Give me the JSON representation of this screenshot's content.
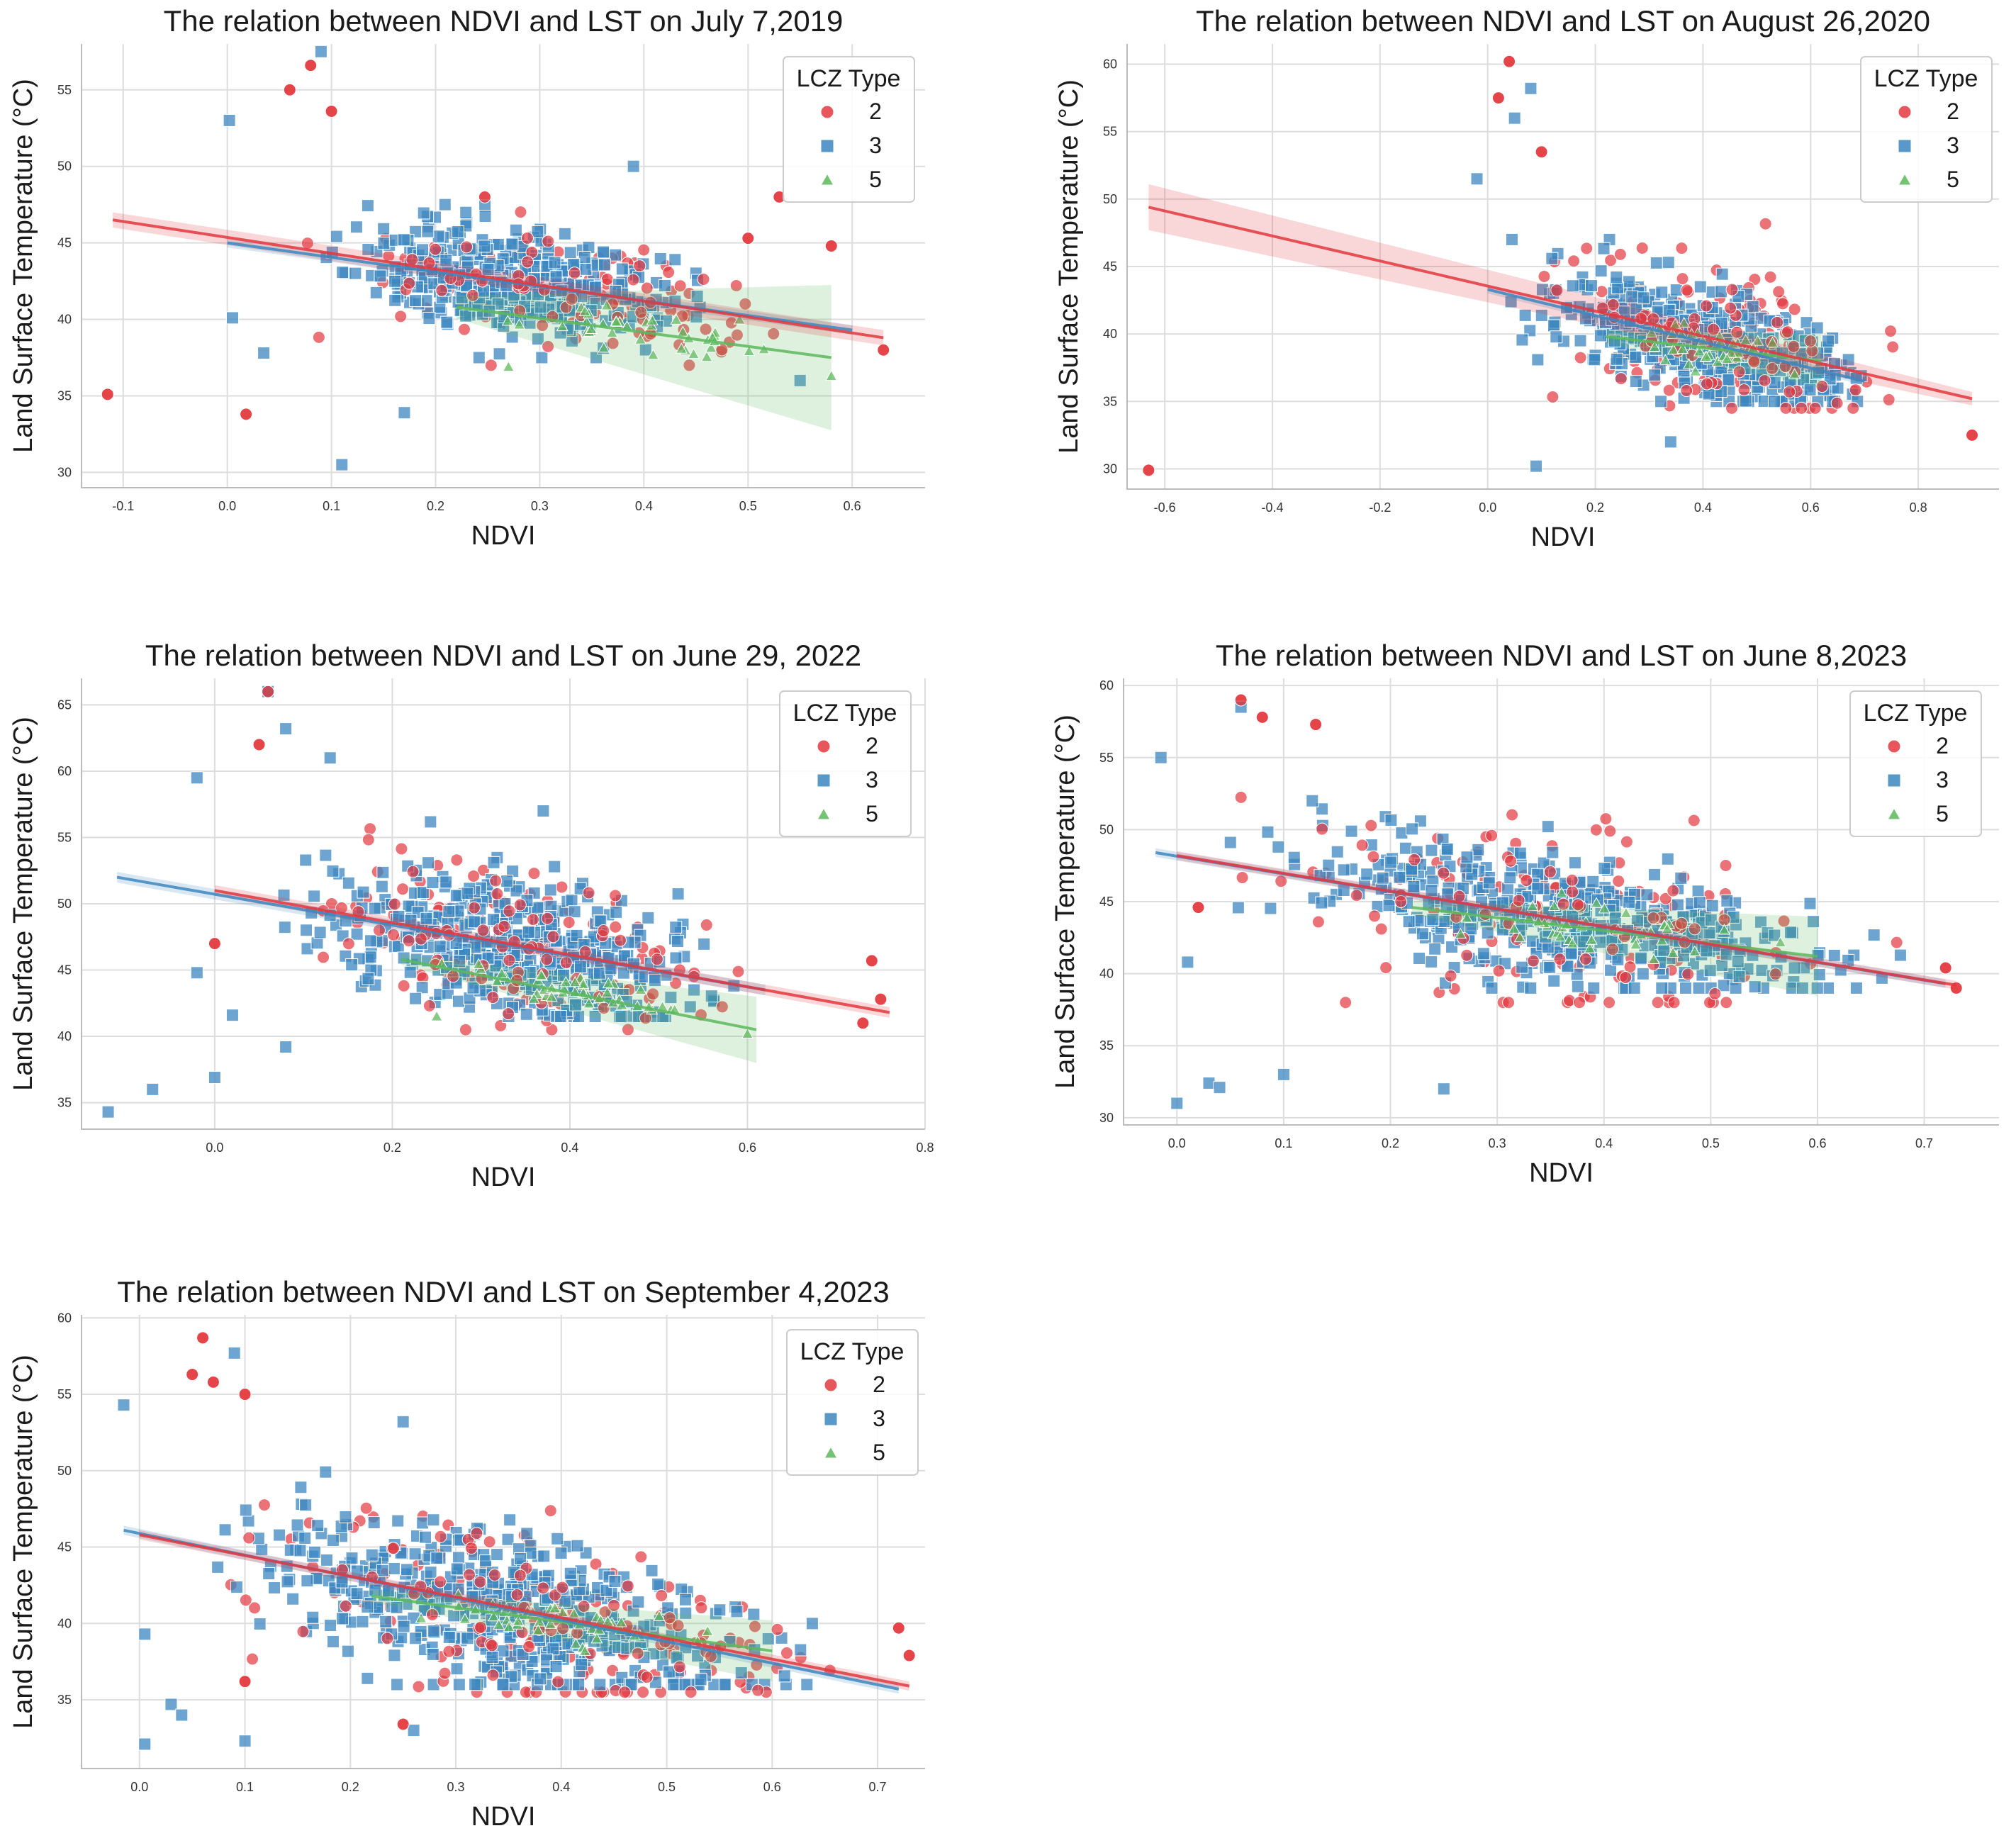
{
  "colors": {
    "lcz2": "#e3383e",
    "lcz3": "#3c87c0",
    "lcz5": "#5cb85c",
    "grid": "#dddddd"
  },
  "legend": {
    "title": "LCZ Type",
    "entries": [
      {
        "label": "2",
        "marker": "circle",
        "color": "#e3383e"
      },
      {
        "label": "3",
        "marker": "square",
        "color": "#3c87c0"
      },
      {
        "label": "5",
        "marker": "triangle",
        "color": "#5cb85c"
      }
    ]
  },
  "chart_data": [
    {
      "type": "scatter",
      "title": "The relation between NDVI and LST on July 7,2019",
      "xlabel": "NDVI",
      "ylabel": "Land Surface Temperature (°C)",
      "xlim": [
        -0.14,
        0.67
      ],
      "ylim": [
        29,
        58
      ],
      "xticks": [
        -0.1,
        0.0,
        0.1,
        0.2,
        0.3,
        0.4,
        0.5,
        0.6
      ],
      "xtick_labels": [
        "-0.1",
        "0.0",
        "0.1",
        "0.2",
        "0.3",
        "0.4",
        "0.5",
        "0.6"
      ],
      "yticks": [
        30,
        35,
        40,
        45,
        50,
        55
      ],
      "ytick_labels": [
        "30",
        "35",
        "40",
        "45",
        "50",
        "55"
      ],
      "legend_position": "top-right",
      "series": [
        {
          "name": "2",
          "cluster": {
            "x": [
              0.04,
              0.62
            ],
            "y": [
              37,
              48
            ],
            "n": 140
          },
          "fit": {
            "x": [
              -0.11,
              0.63
            ],
            "y": [
              46.5,
              38.8
            ]
          },
          "ci": 0.5,
          "outliers": [
            [
              -0.115,
              35.1
            ],
            [
              0.018,
              33.8
            ],
            [
              0.06,
              55.0
            ],
            [
              0.08,
              56.6
            ],
            [
              0.1,
              53.6
            ],
            [
              0.53,
              48.0
            ],
            [
              0.5,
              45.3
            ],
            [
              0.63,
              38.0
            ],
            [
              0.58,
              44.8
            ]
          ]
        },
        {
          "name": "3",
          "cluster": {
            "x": [
              0.05,
              0.5
            ],
            "y": [
              37.5,
              47.5
            ],
            "n": 420
          },
          "fit": {
            "x": [
              0.0,
              0.6
            ],
            "y": [
              45.0,
              39.3
            ]
          },
          "ci": 0.3,
          "outliers": [
            [
              0.002,
              53.0
            ],
            [
              0.005,
              40.1
            ],
            [
              0.09,
              57.5
            ],
            [
              0.11,
              30.5
            ],
            [
              0.17,
              33.9
            ],
            [
              0.035,
              37.8
            ],
            [
              0.39,
              50.0
            ],
            [
              0.55,
              36.0
            ]
          ]
        },
        {
          "name": "5",
          "cluster": {
            "x": [
              0.22,
              0.58
            ],
            "y": [
              37.5,
              42
            ],
            "n": 40
          },
          "fit": {
            "x": [
              0.22,
              0.58
            ],
            "y": [
              40.8,
              37.5
            ]
          },
          "ci": [
            1.5,
            9.5
          ],
          "outliers": [
            [
              0.27,
              36.9
            ],
            [
              0.58,
              36.3
            ]
          ]
        }
      ]
    },
    {
      "type": "scatter",
      "title": "The relation between NDVI and LST on August 26,2020",
      "xlabel": "NDVI",
      "ylabel": "Land Surface Temperature (°C)",
      "xlim": [
        -0.67,
        0.95
      ],
      "ylim": [
        28.5,
        61.5
      ],
      "xticks": [
        -0.6,
        -0.4,
        -0.2,
        0.0,
        0.2,
        0.4,
        0.6,
        0.8
      ],
      "xtick_labels": [
        "-0.6",
        "-0.4",
        "-0.2",
        "0.0",
        "0.2",
        "0.4",
        "0.6",
        "0.8"
      ],
      "yticks": [
        30,
        35,
        40,
        45,
        50,
        55,
        60
      ],
      "ytick_labels": [
        "30",
        "35",
        "40",
        "45",
        "50",
        "55",
        "60"
      ],
      "legend_position": "top-right",
      "series": [
        {
          "name": "2",
          "cluster": {
            "x": [
              0.04,
              0.85
            ],
            "y": [
              34.5,
              49
            ],
            "n": 160
          },
          "fit": {
            "x": [
              -0.63,
              0.9
            ],
            "y": [
              49.4,
              35.2
            ]
          },
          "ci": [
            1.7,
            0.5
          ],
          "outliers": [
            [
              -0.63,
              29.9
            ],
            [
              0.04,
              60.2
            ],
            [
              0.02,
              57.5
            ],
            [
              0.9,
              32.5
            ],
            [
              0.1,
              53.5
            ]
          ]
        },
        {
          "name": "3",
          "cluster": {
            "x": [
              -0.02,
              0.8
            ],
            "y": [
              35,
              47
            ],
            "n": 450
          },
          "fit": {
            "x": [
              0.0,
              0.7
            ],
            "y": [
              43.3,
              36.5
            ]
          },
          "ci": 0.3,
          "outliers": [
            [
              0.05,
              56.0
            ],
            [
              0.08,
              58.2
            ],
            [
              0.09,
              30.2
            ],
            [
              0.34,
              32.0
            ],
            [
              -0.02,
              51.5
            ]
          ]
        },
        {
          "name": "5",
          "cluster": {
            "x": [
              0.22,
              0.6
            ],
            "y": [
              36.5,
              41.5
            ],
            "n": 40
          },
          "fit": {
            "x": [
              0.22,
              0.62
            ],
            "y": [
              39.8,
              38.0
            ]
          },
          "ci": [
            1.0,
            4.0
          ],
          "outliers": []
        }
      ]
    },
    {
      "type": "scatter",
      "title": "The relation between NDVI and LST on June 29, 2022",
      "xlabel": "NDVI",
      "ylabel": "Land Surface Temperature (°C)",
      "xlim": [
        -0.15,
        0.8
      ],
      "ylim": [
        33,
        67
      ],
      "xticks": [
        0.0,
        0.2,
        0.4,
        0.6,
        0.8
      ],
      "xtick_labels": [
        "0.0",
        "0.2",
        "0.4",
        "0.6",
        "0.8"
      ],
      "yticks": [
        35,
        40,
        45,
        50,
        55,
        60,
        65
      ],
      "ytick_labels": [
        "35",
        "40",
        "45",
        "50",
        "55",
        "60",
        "65"
      ],
      "legend_position": "top-right",
      "series": [
        {
          "name": "2",
          "cluster": {
            "x": [
              0.04,
              0.66
            ],
            "y": [
              40.5,
              56.5
            ],
            "n": 170
          },
          "fit": {
            "x": [
              0.0,
              0.76
            ],
            "y": [
              51.0,
              41.8
            ]
          },
          "ci": 0.4,
          "outliers": [
            [
              0.05,
              62.0
            ],
            [
              0.06,
              66.0
            ],
            [
              0.0,
              47.0
            ],
            [
              0.74,
              45.7
            ],
            [
              0.75,
              42.8
            ],
            [
              0.73,
              41.0
            ]
          ]
        },
        {
          "name": "3",
          "cluster": {
            "x": [
              0.03,
              0.63
            ],
            "y": [
              41.5,
              56.5
            ],
            "n": 480
          },
          "fit": {
            "x": [
              -0.11,
              0.62
            ],
            "y": [
              52.0,
              43.5
            ]
          },
          "ci": 0.4,
          "outliers": [
            [
              -0.12,
              34.3
            ],
            [
              -0.07,
              36.0
            ],
            [
              0.0,
              36.9
            ],
            [
              0.02,
              41.6
            ],
            [
              -0.02,
              44.8
            ],
            [
              -0.02,
              59.5
            ],
            [
              0.08,
              63.2
            ],
            [
              0.08,
              39.2
            ],
            [
              0.06,
              66.0
            ],
            [
              0.13,
              61.0
            ],
            [
              0.37,
              57.0
            ]
          ]
        },
        {
          "name": "5",
          "cluster": {
            "x": [
              0.22,
              0.6
            ],
            "y": [
              42,
              46.5
            ],
            "n": 40
          },
          "fit": {
            "x": [
              0.21,
              0.61
            ],
            "y": [
              45.8,
              40.5
            ]
          },
          "ci": [
            0.8,
            5.0
          ],
          "outliers": [
            [
              0.25,
              41.5
            ],
            [
              0.6,
              40.2
            ]
          ]
        }
      ]
    },
    {
      "type": "scatter",
      "title": "The relation between NDVI and LST on June 8,2023",
      "xlabel": "NDVI",
      "ylabel": "Land Surface Temperature (°C)",
      "xlim": [
        -0.05,
        0.77
      ],
      "ylim": [
        29.5,
        60.5
      ],
      "xticks": [
        0.0,
        0.1,
        0.2,
        0.3,
        0.4,
        0.5,
        0.6,
        0.7
      ],
      "xtick_labels": [
        "0.0",
        "0.1",
        "0.2",
        "0.3",
        "0.4",
        "0.5",
        "0.6",
        "0.7"
      ],
      "yticks": [
        30,
        35,
        40,
        45,
        50,
        55,
        60
      ],
      "ytick_labels": [
        "30",
        "35",
        "40",
        "45",
        "50",
        "55",
        "60"
      ],
      "legend_position": "top-right",
      "series": [
        {
          "name": "2",
          "cluster": {
            "x": [
              0.0,
              0.72
            ],
            "y": [
              38,
              55
            ],
            "n": 180
          },
          "fit": {
            "x": [
              0.0,
              0.73
            ],
            "y": [
              48.2,
              39.2
            ]
          },
          "ci": 0.3,
          "outliers": [
            [
              0.06,
              59.0
            ],
            [
              0.08,
              57.8
            ],
            [
              0.13,
              57.3
            ],
            [
              0.02,
              44.6
            ],
            [
              0.73,
              39.0
            ],
            [
              0.72,
              40.4
            ]
          ]
        },
        {
          "name": "3",
          "cluster": {
            "x": [
              0.02,
              0.72
            ],
            "y": [
              39,
              52
            ],
            "n": 500
          },
          "fit": {
            "x": [
              -0.02,
              0.72
            ],
            "y": [
              48.4,
              39.3
            ]
          },
          "ci": 0.3,
          "outliers": [
            [
              -0.015,
              55.0
            ],
            [
              0.0,
              31.0
            ],
            [
              0.03,
              32.4
            ],
            [
              0.04,
              32.1
            ],
            [
              0.1,
              33.0
            ],
            [
              0.25,
              32.0
            ],
            [
              0.06,
              58.5
            ],
            [
              0.01,
              40.8
            ]
          ]
        },
        {
          "name": "5",
          "cluster": {
            "x": [
              0.22,
              0.6
            ],
            "y": [
              41,
              46
            ],
            "n": 45
          },
          "fit": {
            "x": [
              0.22,
              0.6
            ],
            "y": [
              44.6,
              41.2
            ]
          },
          "ci": [
            1.0,
            5.5
          ],
          "outliers": []
        }
      ]
    },
    {
      "type": "scatter",
      "title": "The relation between NDVI and LST on September 4,2023",
      "xlabel": "NDVI",
      "ylabel": "Land Surface Temperature (°C)",
      "xlim": [
        -0.055,
        0.745
      ],
      "ylim": [
        30.5,
        60.2
      ],
      "xticks": [
        0.0,
        0.1,
        0.2,
        0.3,
        0.4,
        0.5,
        0.6,
        0.7
      ],
      "xtick_labels": [
        "0.0",
        "0.1",
        "0.2",
        "0.3",
        "0.4",
        "0.5",
        "0.6",
        "0.7"
      ],
      "yticks": [
        35,
        40,
        45,
        50,
        55,
        60
      ],
      "ytick_labels": [
        "35",
        "40",
        "45",
        "50",
        "55",
        "60"
      ],
      "legend_position": "top-right",
      "series": [
        {
          "name": "2",
          "cluster": {
            "x": [
              0.02,
              0.72
            ],
            "y": [
              35.5,
              52
            ],
            "n": 190
          },
          "fit": {
            "x": [
              0.0,
              0.73
            ],
            "y": [
              45.8,
              35.9
            ]
          },
          "ci": 0.3,
          "outliers": [
            [
              0.06,
              58.7
            ],
            [
              0.07,
              55.8
            ],
            [
              0.1,
              55.0
            ],
            [
              0.05,
              56.3
            ],
            [
              0.25,
              33.4
            ],
            [
              0.1,
              36.2
            ],
            [
              0.72,
              39.7
            ],
            [
              0.73,
              37.9
            ]
          ]
        },
        {
          "name": "3",
          "cluster": {
            "x": [
              0.01,
              0.7
            ],
            "y": [
              36,
              51
            ],
            "n": 520
          },
          "fit": {
            "x": [
              -0.015,
              0.72
            ],
            "y": [
              46.1,
              35.7
            ]
          },
          "ci": 0.3,
          "outliers": [
            [
              -0.015,
              54.3
            ],
            [
              0.005,
              32.1
            ],
            [
              0.1,
              32.3
            ],
            [
              0.03,
              34.7
            ],
            [
              0.04,
              34.0
            ],
            [
              0.005,
              39.3
            ],
            [
              0.09,
              57.7
            ],
            [
              0.26,
              33.0
            ],
            [
              0.25,
              53.2
            ]
          ]
        },
        {
          "name": "5",
          "cluster": {
            "x": [
              0.22,
              0.6
            ],
            "y": [
              38,
              43
            ],
            "n": 45
          },
          "fit": {
            "x": [
              0.22,
              0.6
            ],
            "y": [
              41.8,
              38.2
            ]
          },
          "ci": [
            0.8,
            4.0
          ],
          "outliers": []
        }
      ]
    }
  ]
}
